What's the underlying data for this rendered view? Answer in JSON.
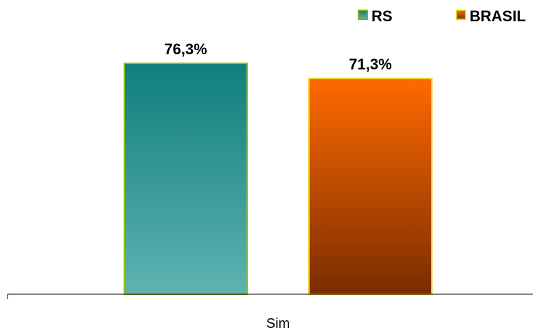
{
  "chart_data": {
    "type": "bar",
    "categories": [
      "Sim"
    ],
    "series": [
      {
        "name": "RS",
        "values": [
          76.3
        ],
        "label": "76,3%",
        "color_top": "#0f7f7d",
        "color_bottom": "#5fb2b2",
        "border": "#8bc414"
      },
      {
        "name": "BRASIL",
        "values": [
          71.3
        ],
        "label": "71,3%",
        "color_top": "#ff6a00",
        "color_bottom": "#7a2c00",
        "border": "#f2d21e"
      }
    ],
    "ylim": [
      0,
      100
    ],
    "grid": false,
    "legend_position": "top-right"
  }
}
